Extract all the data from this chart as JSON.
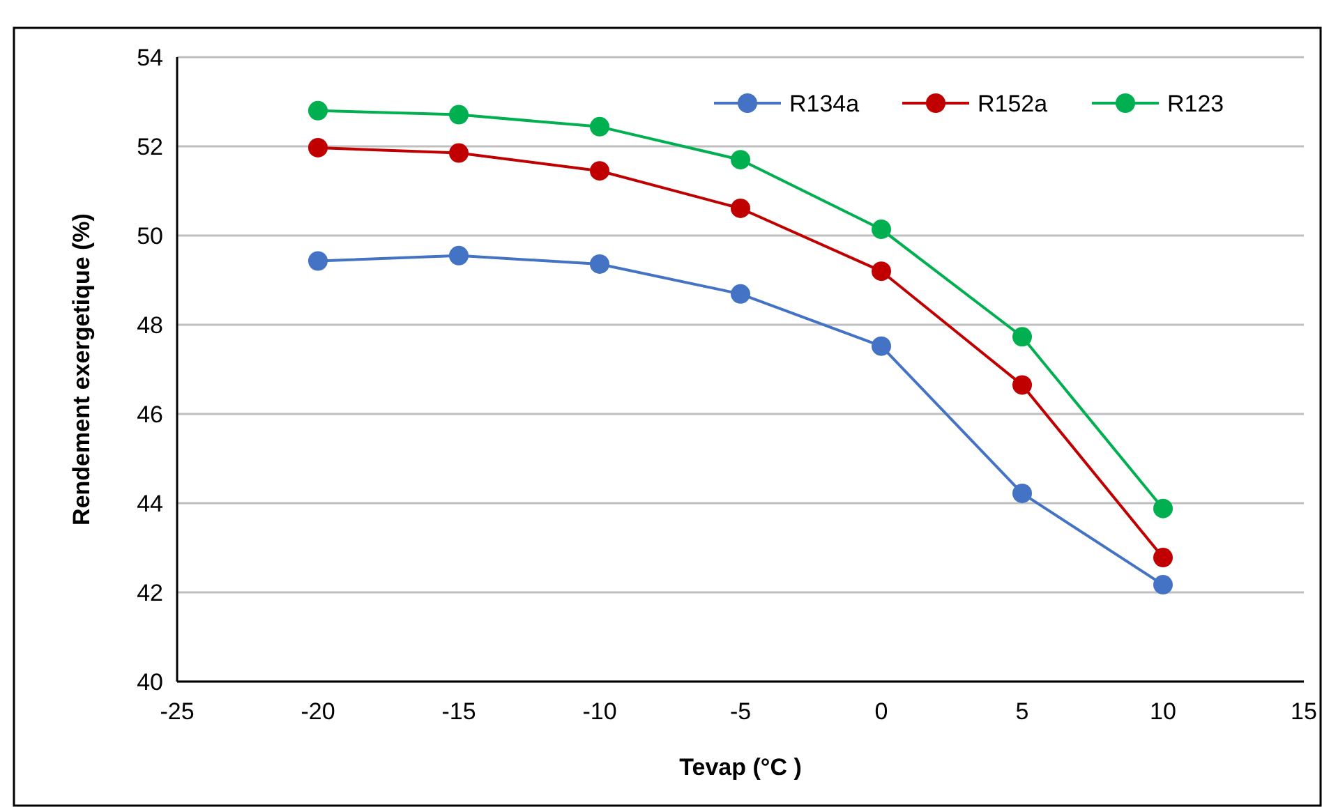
{
  "chart_data": {
    "type": "line",
    "xlabel": "Tevap (°C )",
    "ylabel": "Rendement exergetique (%)",
    "x": [
      -20,
      -15,
      -10,
      -5,
      0,
      5,
      10
    ],
    "series": [
      {
        "name": "R134a",
        "color": "#4472c4",
        "values": [
          49.43,
          49.55,
          49.36,
          48.69,
          47.52,
          44.22,
          42.17
        ]
      },
      {
        "name": "R152a",
        "color": "#c00000",
        "values": [
          51.97,
          51.85,
          51.45,
          50.61,
          49.2,
          46.65,
          42.78
        ]
      },
      {
        "name": "R123",
        "color": "#00b050",
        "values": [
          52.8,
          52.71,
          52.44,
          51.7,
          50.14,
          47.73,
          43.88
        ]
      }
    ],
    "xlim": [
      -25,
      15
    ],
    "xticks": [
      -25,
      -20,
      -15,
      -10,
      -5,
      0,
      5,
      10,
      15
    ],
    "ylim": [
      40,
      54
    ],
    "yticks": [
      40,
      42,
      44,
      46,
      48,
      50,
      52,
      54
    ],
    "grid": "y",
    "legend": "top right",
    "marker": "circle",
    "line_style": "solid"
  }
}
